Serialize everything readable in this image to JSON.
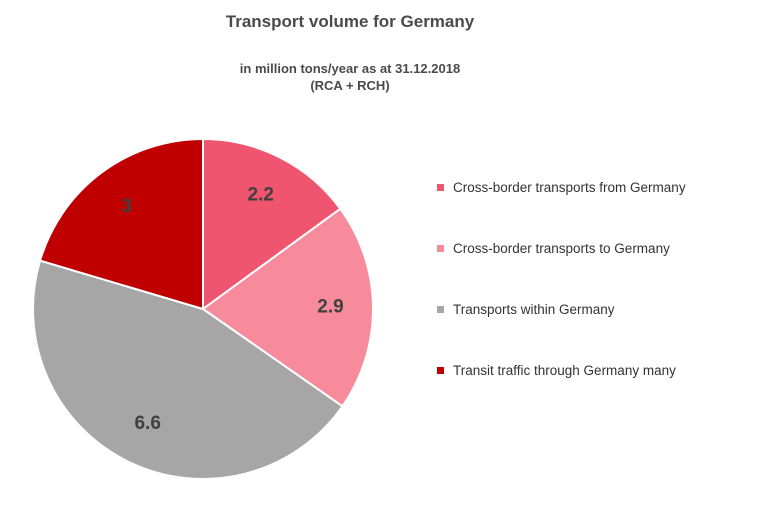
{
  "chart_data": {
    "type": "pie",
    "title": "Transport volume for Germany",
    "subtitle_lines": [
      "in million tons/year as at 31.12.2018",
      "(RCA + RCH)"
    ],
    "slices": [
      {
        "label": "Cross-border transports from Germany",
        "value": 2.2,
        "value_label": "2.2",
        "color": "#f0556f"
      },
      {
        "label": "Cross-border transports to Germany",
        "value": 2.9,
        "value_label": "2.9",
        "color": "#f78a9b"
      },
      {
        "label": "Transports within Germany",
        "value": 6.6,
        "value_label": "6.6",
        "color": "#a6a6a6"
      },
      {
        "label": "Transit traffic through Germany many",
        "value": 3,
        "value_label": "3",
        "color": "#c00000"
      }
    ],
    "legend_position": "right"
  }
}
